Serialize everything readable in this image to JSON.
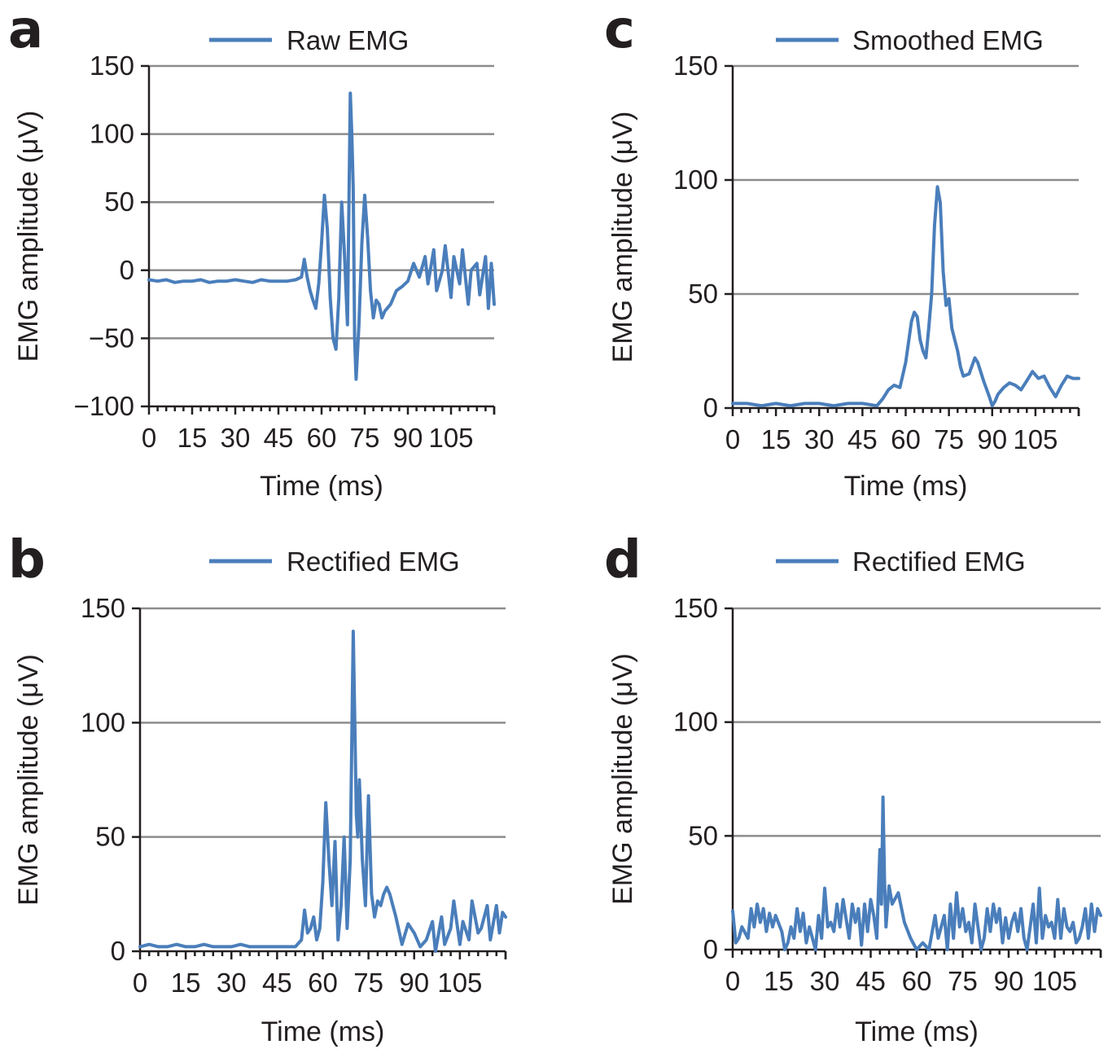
{
  "chart_data": [
    {
      "panel": "a",
      "type": "line",
      "legend": "Raw EMG",
      "legend_position": "top",
      "xlabel": "Time (ms)",
      "ylabel": "EMG amplitude (μV)",
      "xlim": [
        0,
        120
      ],
      "ylim": [
        -100,
        150
      ],
      "yticks": [
        150,
        100,
        50,
        0,
        -50,
        -100
      ],
      "ytick_labels": [
        "150",
        "100",
        "50",
        "0",
        "−50",
        "−100"
      ],
      "xticks": [
        0,
        15,
        30,
        45,
        60,
        75,
        90,
        105
      ],
      "xtick_labels": [
        "0",
        "15",
        "30",
        "45",
        "60",
        "75",
        "90",
        "105"
      ],
      "grid": true,
      "color": "#4a7ebb",
      "series": [
        {
          "x": [
            0,
            3,
            6,
            9,
            12,
            15,
            18,
            21,
            24,
            27,
            30,
            33,
            36,
            39,
            42,
            45,
            48,
            51,
            53,
            54,
            55,
            56,
            57,
            58,
            59,
            60,
            61,
            62,
            63,
            64,
            65,
            66,
            67,
            68,
            69,
            70,
            70.5,
            71,
            71.5,
            72,
            73,
            74,
            75,
            76,
            77,
            78,
            79,
            80,
            81,
            82,
            84,
            86,
            88,
            90,
            92,
            94,
            96,
            97,
            99,
            100,
            102,
            103,
            105,
            106,
            108,
            109,
            111,
            112,
            114,
            115,
            117,
            118,
            119,
            120
          ],
          "y": [
            -7,
            -8,
            -7,
            -9,
            -8,
            -8,
            -7,
            -9,
            -8,
            -8,
            -7,
            -8,
            -9,
            -7,
            -8,
            -8,
            -8,
            -7,
            -5,
            8,
            -5,
            -15,
            -22,
            -28,
            -10,
            20,
            55,
            30,
            -20,
            -50,
            -58,
            -20,
            50,
            10,
            -40,
            130,
            100,
            60,
            -50,
            -80,
            -40,
            20,
            55,
            25,
            -15,
            -35,
            -22,
            -25,
            -35,
            -30,
            -25,
            -15,
            -12,
            -8,
            5,
            -5,
            10,
            -10,
            15,
            -15,
            0,
            18,
            -20,
            10,
            -10,
            15,
            -25,
            0,
            5,
            -18,
            10,
            -28,
            5,
            -25
          ]
        }
      ]
    },
    {
      "panel": "b",
      "type": "line",
      "legend": "Rectified EMG",
      "legend_position": "top",
      "xlabel": "Time (ms)",
      "ylabel": "EMG amplitude (μV)",
      "xlim": [
        0,
        120
      ],
      "ylim": [
        0,
        150
      ],
      "yticks": [
        150,
        100,
        50,
        0
      ],
      "ytick_labels": [
        "150",
        "100",
        "50",
        "0"
      ],
      "xticks": [
        0,
        15,
        30,
        45,
        60,
        75,
        90,
        105
      ],
      "xtick_labels": [
        "0",
        "15",
        "30",
        "45",
        "60",
        "75",
        "90",
        "105"
      ],
      "grid": true,
      "color": "#4a7ebb",
      "series": [
        {
          "x": [
            0,
            3,
            6,
            9,
            12,
            15,
            18,
            21,
            24,
            27,
            30,
            33,
            36,
            39,
            42,
            45,
            48,
            51,
            53,
            54,
            55,
            56,
            57,
            58,
            59,
            60,
            61,
            62,
            63,
            64,
            65,
            66,
            67,
            68,
            69,
            70,
            70.5,
            71,
            71.5,
            72,
            73,
            74,
            75,
            76,
            77,
            78,
            79,
            80,
            81,
            82,
            84,
            86,
            88,
            90,
            92,
            94,
            96,
            97,
            99,
            100,
            102,
            103,
            105,
            106,
            108,
            109,
            111,
            112,
            114,
            115,
            117,
            118,
            119,
            120
          ],
          "y": [
            2,
            3,
            2,
            2,
            3,
            2,
            2,
            3,
            2,
            2,
            2,
            3,
            2,
            2,
            2,
            2,
            2,
            2,
            5,
            18,
            8,
            10,
            15,
            5,
            10,
            30,
            65,
            40,
            20,
            48,
            5,
            20,
            50,
            10,
            40,
            140,
            100,
            60,
            50,
            75,
            40,
            20,
            68,
            25,
            15,
            22,
            20,
            25,
            28,
            25,
            15,
            3,
            12,
            8,
            2,
            5,
            13,
            0,
            15,
            3,
            10,
            22,
            3,
            13,
            5,
            22,
            8,
            10,
            20,
            5,
            20,
            8,
            17,
            15
          ]
        }
      ]
    },
    {
      "panel": "c",
      "type": "line",
      "legend": "Smoothed EMG",
      "legend_position": "top",
      "xlabel": "Time (ms)",
      "ylabel": "EMG amplitude (μV)",
      "xlim": [
        0,
        120
      ],
      "ylim": [
        0,
        150
      ],
      "yticks": [
        150,
        100,
        50,
        0
      ],
      "ytick_labels": [
        "150",
        "100",
        "50",
        "0"
      ],
      "xticks": [
        0,
        15,
        30,
        45,
        60,
        75,
        90,
        105
      ],
      "xtick_labels": [
        "0",
        "15",
        "30",
        "45",
        "60",
        "75",
        "90",
        "105"
      ],
      "grid": true,
      "color": "#4a7ebb",
      "series": [
        {
          "x": [
            0,
            5,
            10,
            15,
            20,
            25,
            30,
            35,
            40,
            45,
            50,
            52,
            54,
            56,
            58,
            60,
            62,
            63,
            64,
            65,
            66,
            67,
            68,
            69,
            70,
            71,
            72,
            73,
            74,
            75,
            76,
            77,
            78,
            79,
            80,
            82,
            84,
            85,
            87,
            89,
            90,
            91,
            92,
            94,
            96,
            98,
            100,
            102,
            104,
            106,
            108,
            110,
            112,
            114,
            116,
            118,
            120
          ],
          "y": [
            2,
            2,
            1,
            2,
            1,
            2,
            2,
            1,
            2,
            2,
            1,
            4,
            8,
            10,
            9,
            20,
            38,
            42,
            40,
            30,
            25,
            22,
            35,
            50,
            80,
            97,
            90,
            60,
            45,
            48,
            35,
            30,
            25,
            18,
            14,
            15,
            22,
            20,
            12,
            5,
            1,
            3,
            6,
            9,
            11,
            10,
            8,
            12,
            16,
            13,
            14,
            9,
            5,
            10,
            14,
            13,
            13
          ]
        }
      ]
    },
    {
      "panel": "d",
      "type": "line",
      "legend": "Rectified EMG",
      "legend_position": "top",
      "xlabel": "Time (ms)",
      "ylabel": "EMG amplitude (μV)",
      "xlim": [
        0,
        120
      ],
      "ylim": [
        0,
        150
      ],
      "yticks": [
        150,
        100,
        50,
        0
      ],
      "ytick_labels": [
        "150",
        "100",
        "50",
        "0"
      ],
      "xticks": [
        0,
        15,
        30,
        45,
        60,
        75,
        90,
        105
      ],
      "xtick_labels": [
        "0",
        "15",
        "30",
        "45",
        "60",
        "75",
        "90",
        "105"
      ],
      "grid": true,
      "color": "#4a7ebb",
      "series": [
        {
          "x": [
            0,
            1,
            2,
            3,
            5,
            6,
            7,
            8,
            9,
            10,
            11,
            12,
            13,
            14,
            16,
            17,
            18,
            19,
            20,
            21,
            22,
            23,
            24,
            25,
            27,
            28,
            29,
            30,
            31,
            32,
            33,
            34,
            35,
            36,
            38,
            39,
            40,
            41,
            42,
            43,
            44,
            45,
            46,
            47,
            48,
            48.5,
            49,
            49.5,
            50,
            51,
            52,
            54,
            56,
            58,
            60,
            62,
            64,
            66,
            67,
            68,
            69,
            70,
            71,
            72,
            73,
            74,
            75,
            76,
            77,
            78,
            79,
            80,
            81,
            82,
            83,
            84,
            85,
            86,
            87,
            88,
            89,
            90,
            91,
            92,
            93,
            94,
            95,
            96,
            97,
            98,
            99,
            100,
            101,
            102,
            103,
            104,
            105,
            106,
            107,
            108,
            109,
            110,
            111,
            112,
            113,
            114,
            115,
            116,
            117,
            118,
            119,
            120
          ],
          "y": [
            17,
            3,
            5,
            10,
            5,
            18,
            10,
            20,
            12,
            18,
            8,
            16,
            10,
            15,
            8,
            0,
            3,
            10,
            5,
            18,
            8,
            16,
            3,
            10,
            0,
            15,
            5,
            27,
            10,
            12,
            8,
            20,
            10,
            22,
            5,
            20,
            12,
            18,
            2,
            20,
            8,
            22,
            15,
            5,
            44,
            20,
            67,
            30,
            10,
            28,
            20,
            25,
            12,
            5,
            0,
            3,
            0,
            15,
            5,
            10,
            15,
            0,
            20,
            5,
            25,
            10,
            18,
            8,
            12,
            3,
            20,
            10,
            0,
            5,
            18,
            8,
            20,
            12,
            18,
            3,
            14,
            5,
            12,
            16,
            8,
            18,
            5,
            0,
            10,
            20,
            3,
            27,
            5,
            15,
            10,
            12,
            5,
            22,
            5,
            18,
            10,
            8,
            12,
            3,
            5,
            10,
            18,
            5,
            20,
            8,
            18,
            15
          ]
        }
      ]
    }
  ]
}
